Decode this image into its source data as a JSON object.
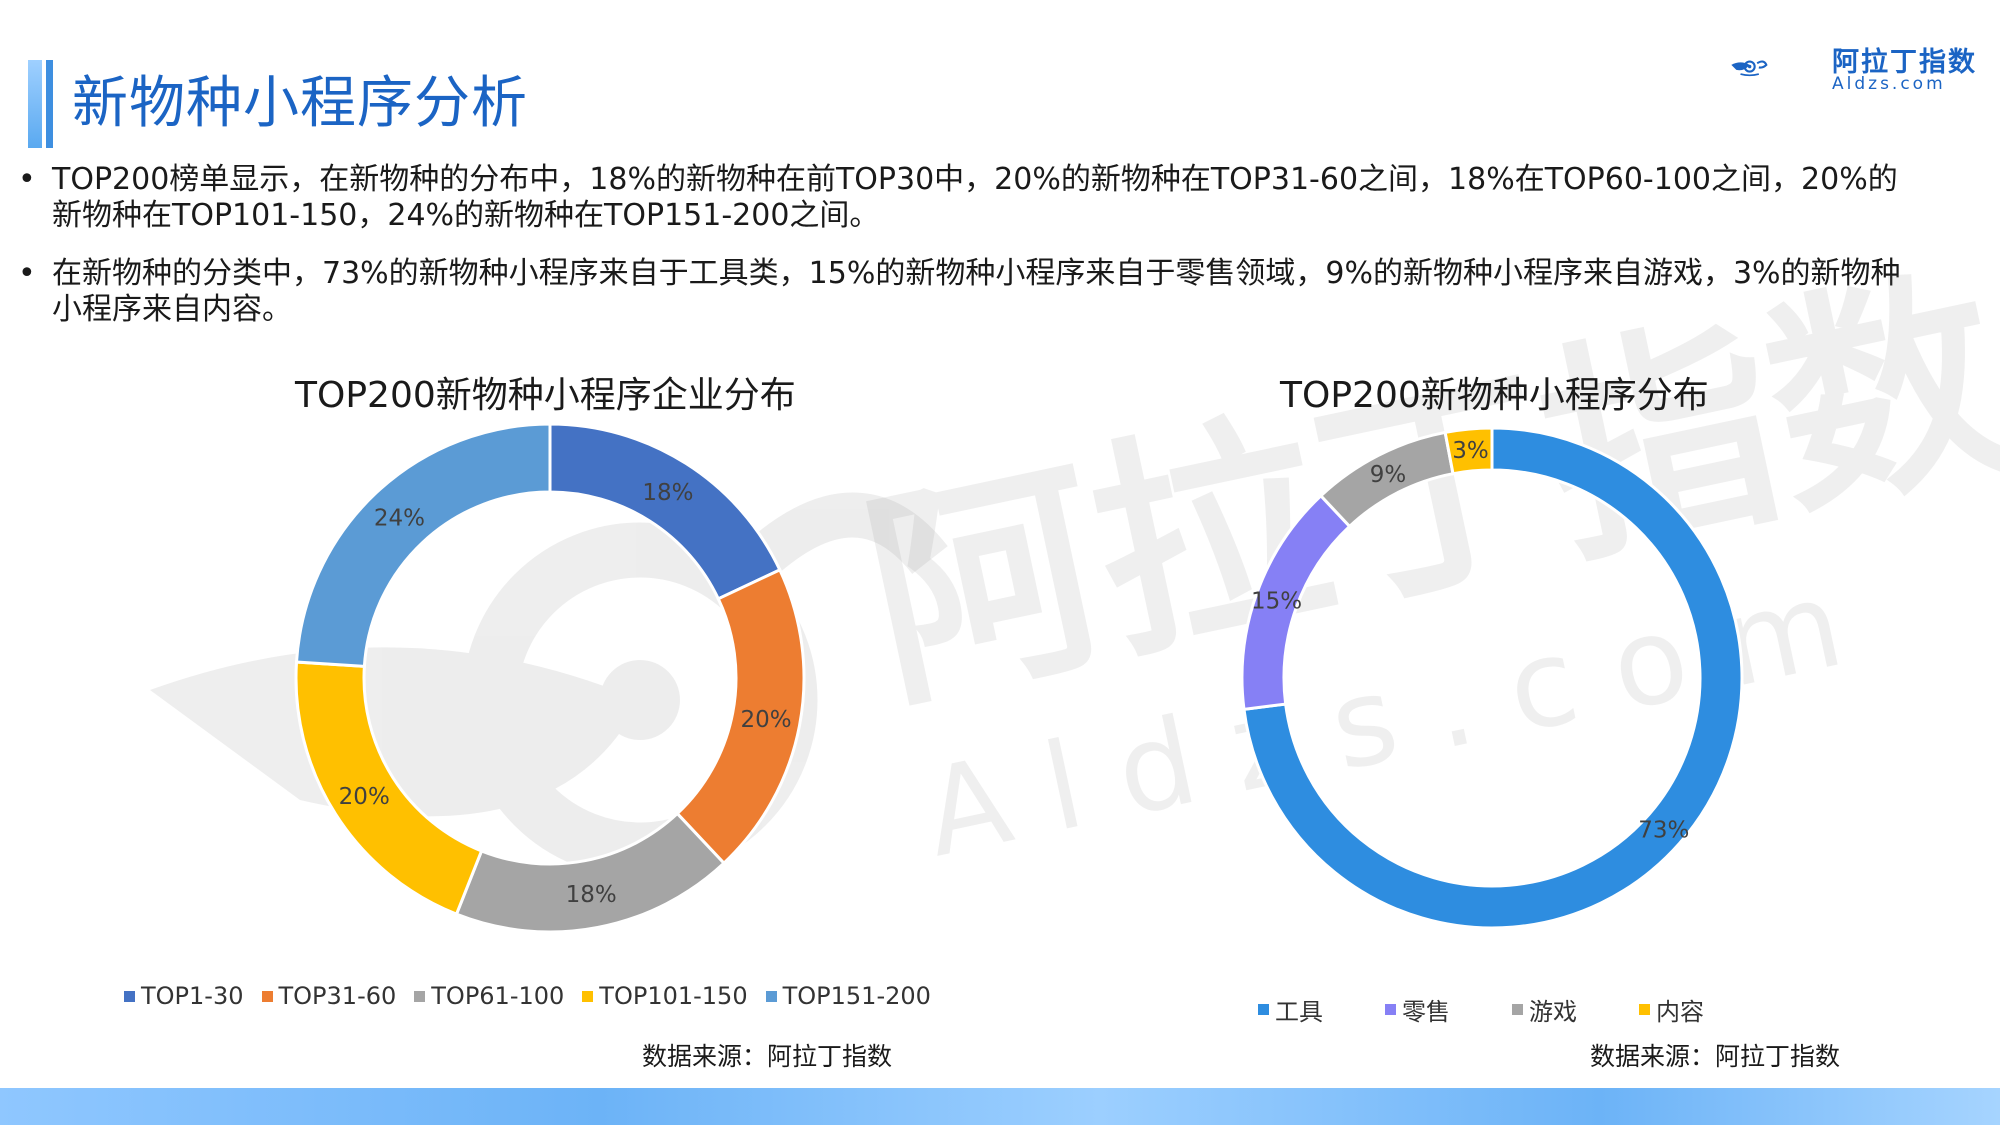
{
  "header": {
    "title": "新物种小程序分析",
    "logo_text": "阿拉丁指数",
    "logo_sub": "Aldzs.com"
  },
  "bullets": [
    "TOP200榜单显示，在新物种的分布中，18%的新物种在前TOP30中，20%的新物种在TOP31-60之间，18%在TOP60-100之间，20%的新物种在TOP101-150，24%的新物种在TOP151-200之间。",
    "在新物种的分类中，73%的新物种小程序来自于工具类，15%的新物种小程序来自于零售领域，9%的新物种小程序来自游戏，3%的新物种小程序来自内容。"
  ],
  "watermark": {
    "cn": "阿拉丁指数",
    "en": "Aldzs.com"
  },
  "chart_data": [
    {
      "type": "pie",
      "title": "TOP200新物种小程序企业分布",
      "categories": [
        "TOP1-30",
        "TOP31-60",
        "TOP61-100",
        "TOP101-150",
        "TOP151-200"
      ],
      "values": [
        18,
        20,
        18,
        20,
        24
      ],
      "labels": [
        "18%",
        "20%",
        "18%",
        "20%",
        "24%"
      ],
      "colors": [
        "#4472c4",
        "#ed7d31",
        "#a5a5a5",
        "#ffc000",
        "#5b9bd5"
      ],
      "donut": true,
      "legend_position": "bottom",
      "source": "数据来源：阿拉丁指数"
    },
    {
      "type": "pie",
      "title": "TOP200新物种小程序分布",
      "categories": [
        "工具",
        "零售",
        "游戏",
        "内容"
      ],
      "values": [
        73,
        15,
        9,
        3
      ],
      "labels": [
        "73%",
        "15%",
        "9%",
        "3%"
      ],
      "colors": [
        "#2e8de0",
        "#8680f5",
        "#a5a5a5",
        "#ffc000"
      ],
      "donut": true,
      "legend_position": "bottom",
      "source": "数据来源：阿拉丁指数"
    }
  ]
}
